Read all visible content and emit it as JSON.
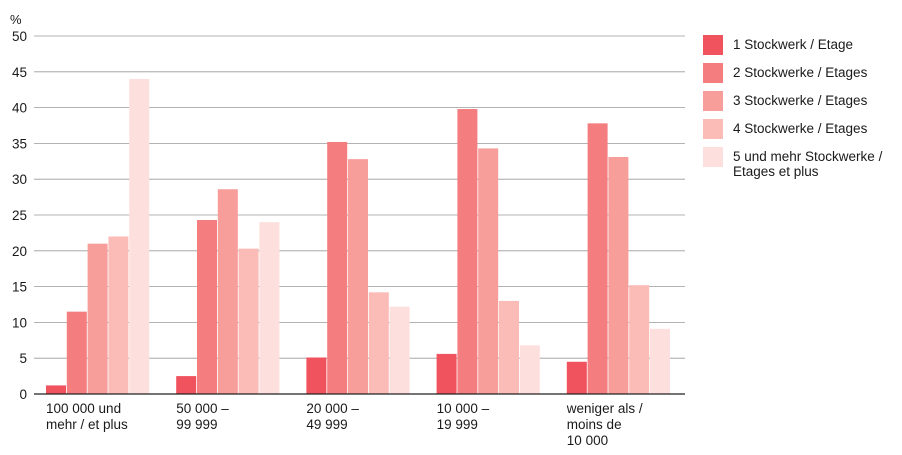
{
  "chart_data": {
    "type": "bar",
    "ylabel": "%",
    "ylim": [
      0,
      50
    ],
    "yticks": [
      0,
      5,
      10,
      15,
      20,
      25,
      30,
      35,
      40,
      45,
      50
    ],
    "grid": true,
    "legend_position": "right",
    "categories": [
      "100 000 und\nmehr / et plus",
      "50 000 –\n99 999",
      "20 000 –\n49 999",
      "10 000 –\n19 999",
      "weniger als /\nmoins de\n10 000"
    ],
    "series": [
      {
        "name": "1 Stockwerk / Etage",
        "color": "#f0525e",
        "values": [
          1.2,
          2.5,
          5.1,
          5.6,
          4.5
        ]
      },
      {
        "name": "2 Stockwerke / Etages",
        "color": "#f47d7f",
        "values": [
          11.5,
          24.3,
          35.2,
          39.8,
          37.8
        ]
      },
      {
        "name": "3 Stockwerke / Etages",
        "color": "#f79d9a",
        "values": [
          21.0,
          28.6,
          32.8,
          34.3,
          33.1
        ]
      },
      {
        "name": "4 Stockwerke / Etages",
        "color": "#fbbcb8",
        "values": [
          22.0,
          20.3,
          14.2,
          13.0,
          15.2
        ]
      },
      {
        "name": "5 und mehr Stockwerke /\nEtages et plus",
        "color": "#fde0dd",
        "values": [
          44.0,
          24.0,
          12.2,
          6.8,
          9.1
        ]
      }
    ]
  }
}
